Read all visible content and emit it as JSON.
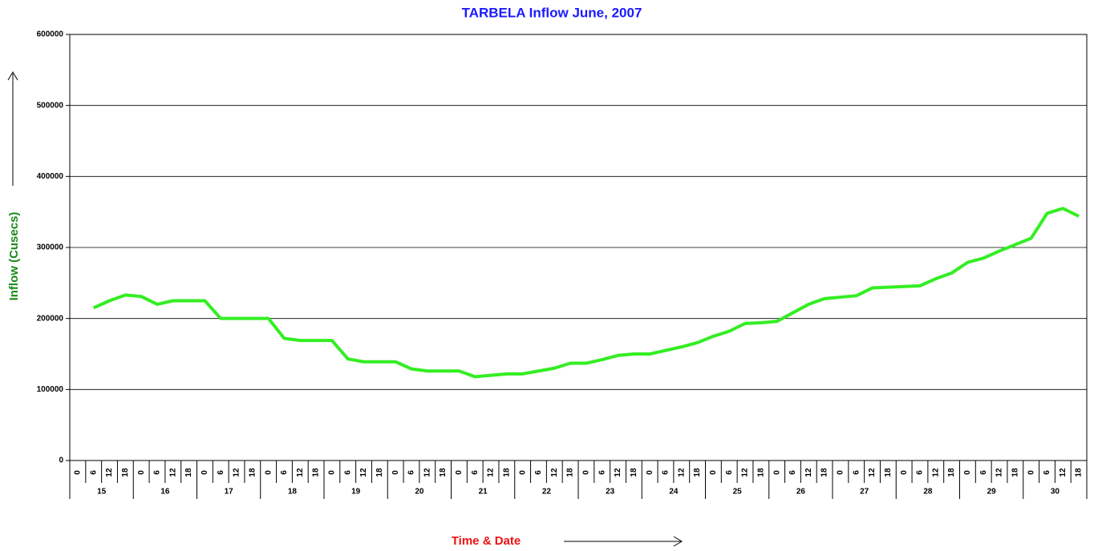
{
  "chart_data": {
    "type": "line",
    "title": "TARBELA Inflow June, 2007",
    "y_label": "Inflow (Cusecs)",
    "x_label": "Time & Date",
    "categories": [
      "0",
      "6",
      "12",
      "18",
      "0",
      "6",
      "12",
      "18",
      "0",
      "6",
      "12",
      "18",
      "0",
      "6",
      "12",
      "18",
      "0",
      "6",
      "12",
      "18",
      "0",
      "6",
      "12",
      "18",
      "0",
      "6",
      "12",
      "18",
      "0",
      "6",
      "12",
      "18",
      "0",
      "6",
      "12",
      "18",
      "0",
      "6",
      "12",
      "18",
      "0",
      "6",
      "12",
      "18",
      "0",
      "6",
      "12",
      "18",
      "0",
      "6",
      "12",
      "18",
      "0",
      "6",
      "12",
      "18",
      "0",
      "6",
      "12",
      "18",
      "0",
      "6",
      "12",
      "18"
    ],
    "dates": [
      "15",
      "16",
      "17",
      "18",
      "19",
      "20",
      "21",
      "22",
      "23",
      "24",
      "25",
      "26",
      "27",
      "28",
      "29",
      "30"
    ],
    "series": [
      {
        "name": "Inflow",
        "color": "#33ee22",
        "values": [
          null,
          215000,
          225000,
          233000,
          231000,
          220000,
          225000,
          225000,
          225000,
          200000,
          200000,
          200000,
          200000,
          172000,
          169000,
          169000,
          169000,
          143000,
          139000,
          139000,
          139000,
          129000,
          126000,
          126000,
          126000,
          118000,
          120000,
          122000,
          122000,
          126000,
          130000,
          137000,
          137000,
          142000,
          148000,
          150000,
          150000,
          155000,
          160000,
          166000,
          175000,
          182000,
          193000,
          194000,
          196000,
          208000,
          220000,
          228000,
          230000,
          232000,
          243000,
          244000,
          245000,
          246000,
          256000,
          264000,
          279000,
          285000,
          295000,
          304000,
          313000,
          348000,
          355000,
          344000
        ]
      }
    ],
    "ylim": [
      0,
      600000
    ],
    "yticks": [
      0,
      100000,
      200000,
      300000,
      400000,
      500000,
      600000
    ],
    "grid": true
  }
}
